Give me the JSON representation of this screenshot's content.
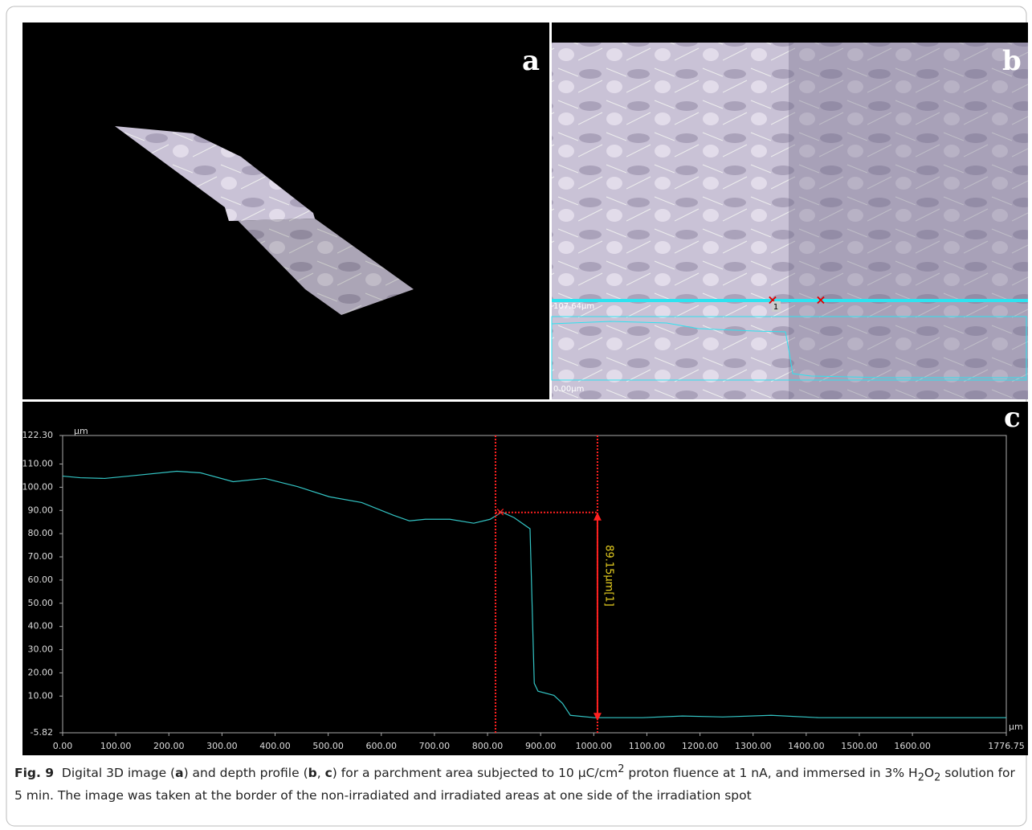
{
  "panels": {
    "a": "a",
    "b": "b",
    "c": "c"
  },
  "profile_overlay": {
    "top_label": "107.64µm",
    "bottom_label": "0.00µm",
    "marker_label": "1"
  },
  "chart_data": {
    "type": "line",
    "y_unit": "µm",
    "x_unit": "µm",
    "x": [
      0,
      33,
      79,
      124,
      215,
      260,
      321,
      381,
      442,
      502,
      563,
      623,
      653,
      683,
      729,
      774,
      805,
      827,
      850,
      880,
      888,
      895,
      925,
      941,
      956,
      1001,
      1092,
      1167,
      1243,
      1334,
      1424,
      1777
    ],
    "values": [
      104.8,
      104.1,
      103.8,
      104.8,
      106.9,
      106.2,
      102.4,
      103.8,
      100.3,
      95.9,
      93.4,
      87.9,
      85.5,
      86.2,
      86.2,
      84.5,
      86.2,
      89.3,
      86.9,
      82.1,
      15.5,
      12.1,
      10.3,
      6.9,
      1.7,
      0.7,
      0.7,
      1.4,
      1.0,
      1.7,
      0.7,
      0.7
    ],
    "color": "#33c4c4",
    "xlim": [
      0,
      1776.75
    ],
    "ylim": [
      -5.82,
      122.3
    ],
    "xticks": [
      {
        "value": 0,
        "label": "0.00"
      },
      {
        "value": 100,
        "label": "100.00"
      },
      {
        "value": 200,
        "label": "200.00"
      },
      {
        "value": 300,
        "label": "300.00"
      },
      {
        "value": 400,
        "label": "400.00"
      },
      {
        "value": 500,
        "label": "500.00"
      },
      {
        "value": 600,
        "label": "600.00"
      },
      {
        "value": 700,
        "label": "700.00"
      },
      {
        "value": 800,
        "label": "800.00"
      },
      {
        "value": 900,
        "label": "900.00"
      },
      {
        "value": 1000,
        "label": "1000.00"
      },
      {
        "value": 1100,
        "label": "1100.00"
      },
      {
        "value": 1200,
        "label": "1200.00"
      },
      {
        "value": 1300,
        "label": "1300.00"
      },
      {
        "value": 1400,
        "label": "1400.00"
      },
      {
        "value": 1500,
        "label": "1500.00"
      },
      {
        "value": 1600,
        "label": "1600.00"
      },
      1776.75
    ],
    "yticks": [
      -5.82,
      {
        "value": 10,
        "label": "10.00"
      },
      {
        "value": 20,
        "label": "20.00"
      },
      {
        "value": 30,
        "label": "30.00"
      },
      {
        "value": 40,
        "label": "40.00"
      },
      {
        "value": 50,
        "label": "50.00"
      },
      {
        "value": 60,
        "label": "60.00"
      },
      {
        "value": 70,
        "label": "70.00"
      },
      {
        "value": 80,
        "label": "80.00"
      },
      {
        "value": 90,
        "label": "90.00"
      },
      {
        "value": 100,
        "label": "100.00"
      },
      {
        "value": 110,
        "label": "110.00"
      },
      {
        "value": 122.3,
        "label": "122.30"
      }
    ],
    "measurement": {
      "x1": 815,
      "x2": 1007,
      "value": 89.15,
      "label": "89.15µm[1]",
      "color": "#ff2020",
      "label_color": "#e8d020"
    }
  },
  "caption": [
    {
      "text": "Fig. 9",
      "style": "b"
    },
    {
      "text": "  Digital 3D image ("
    },
    {
      "text": "a",
      "style": "b"
    },
    {
      "text": ") and depth profile ("
    },
    {
      "text": "b",
      "style": "b"
    },
    {
      "text": ", "
    },
    {
      "text": "c",
      "style": "b"
    },
    {
      "text": ") for a parchment area subjected to 10 µC/cm"
    },
    {
      "text": "2",
      "style": "sup"
    },
    {
      "text": " proton fluence at 1 nA, and immersed in 3% H"
    },
    {
      "text": "2",
      "style": "sub"
    },
    {
      "text": "O"
    },
    {
      "text": "2",
      "style": "sub"
    },
    {
      "text": " solution for 5 min. The image was taken at the border of the non-irradiated and irradiated areas at one side of the irradiation spot"
    }
  ]
}
